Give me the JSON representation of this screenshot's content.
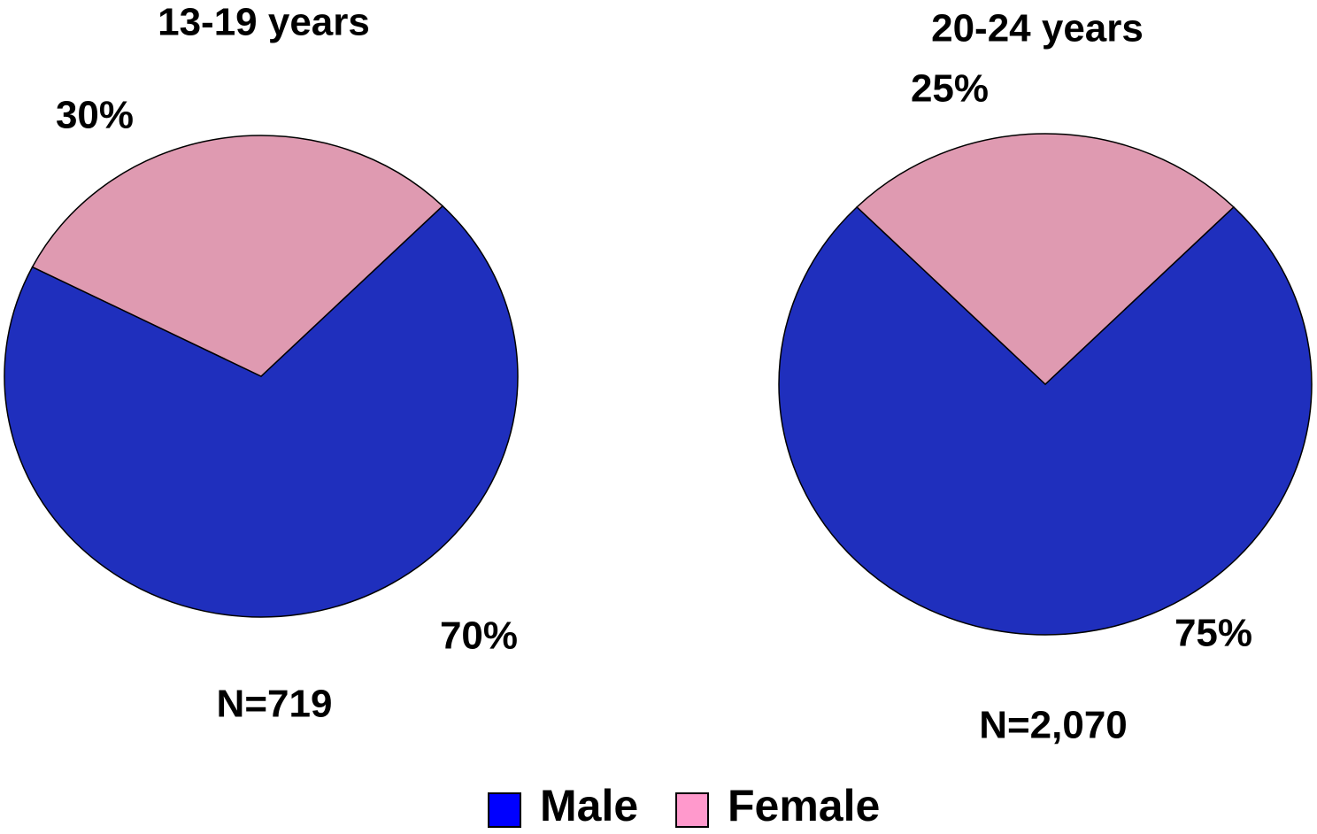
{
  "chart_data": [
    {
      "type": "pie",
      "title": "13-19 years",
      "categories": [
        "Male",
        "Female"
      ],
      "values": [
        70,
        30
      ],
      "value_labels": [
        "70%",
        "30%"
      ],
      "colors": [
        "#1f2fbd",
        "#df9ab1"
      ],
      "annotation": "N=719"
    },
    {
      "type": "pie",
      "title": "20-24 years",
      "categories": [
        "Male",
        "Female"
      ],
      "values": [
        75,
        25
      ],
      "value_labels": [
        "75%",
        "25%"
      ],
      "colors": [
        "#1f2fbd",
        "#df9ab1"
      ],
      "annotation": "N=2,070"
    }
  ],
  "legend": {
    "entries": [
      {
        "name": "Male",
        "color": "#0000ff"
      },
      {
        "name": "Female",
        "color": "#ff99cc"
      }
    ]
  }
}
